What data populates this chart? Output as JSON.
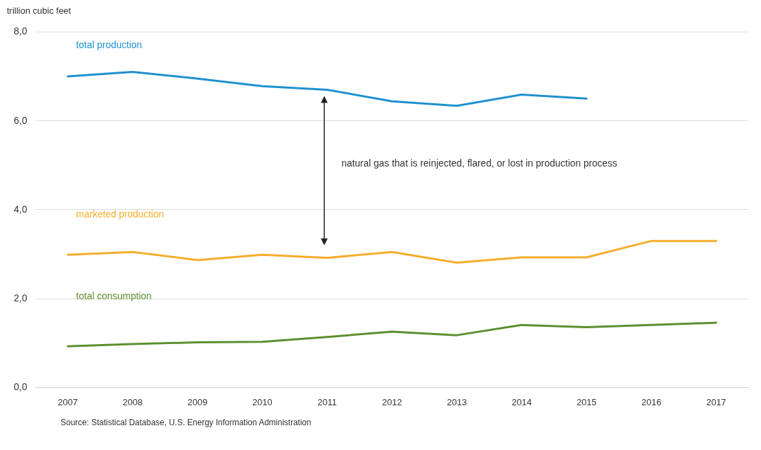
{
  "chart_data": {
    "type": "line",
    "ylabel": "trillion cubic feet",
    "categories": [
      "2007",
      "2008",
      "2009",
      "2010",
      "2011",
      "2012",
      "2013",
      "2014",
      "2015",
      "2016",
      "2017"
    ],
    "series": [
      {
        "name": "total production",
        "color": "#1e90cf",
        "values": [
          7.0,
          7.1,
          6.95,
          6.78,
          6.7,
          6.44,
          6.34,
          6.59,
          6.5,
          null,
          null
        ]
      },
      {
        "name": "marketed production",
        "color": "#f5ad2a",
        "values": [
          2.99,
          3.05,
          2.87,
          2.99,
          2.92,
          3.05,
          2.81,
          2.93,
          2.93,
          3.3,
          3.3
        ]
      },
      {
        "name": "total consumption",
        "color": "#5b8f2e",
        "values": [
          0.93,
          0.98,
          1.02,
          1.03,
          1.14,
          1.26,
          1.18,
          1.41,
          1.36,
          1.41,
          1.46
        ]
      }
    ],
    "ylim": [
      0,
      8
    ],
    "yticks": [
      {
        "value": 0,
        "label": "0,0"
      },
      {
        "value": 2,
        "label": "2,0"
      },
      {
        "value": 4,
        "label": "4,0"
      },
      {
        "value": 6,
        "label": "6,0"
      },
      {
        "value": 8,
        "label": "8,0"
      }
    ],
    "grid": "y",
    "legend": false,
    "marker": "none",
    "line_style": "solid",
    "annotations": [
      "natural gas that is reinjected, flared, or lost in production process",
      "Source: Statistical Database, U.S. Energy Information Administration"
    ]
  }
}
